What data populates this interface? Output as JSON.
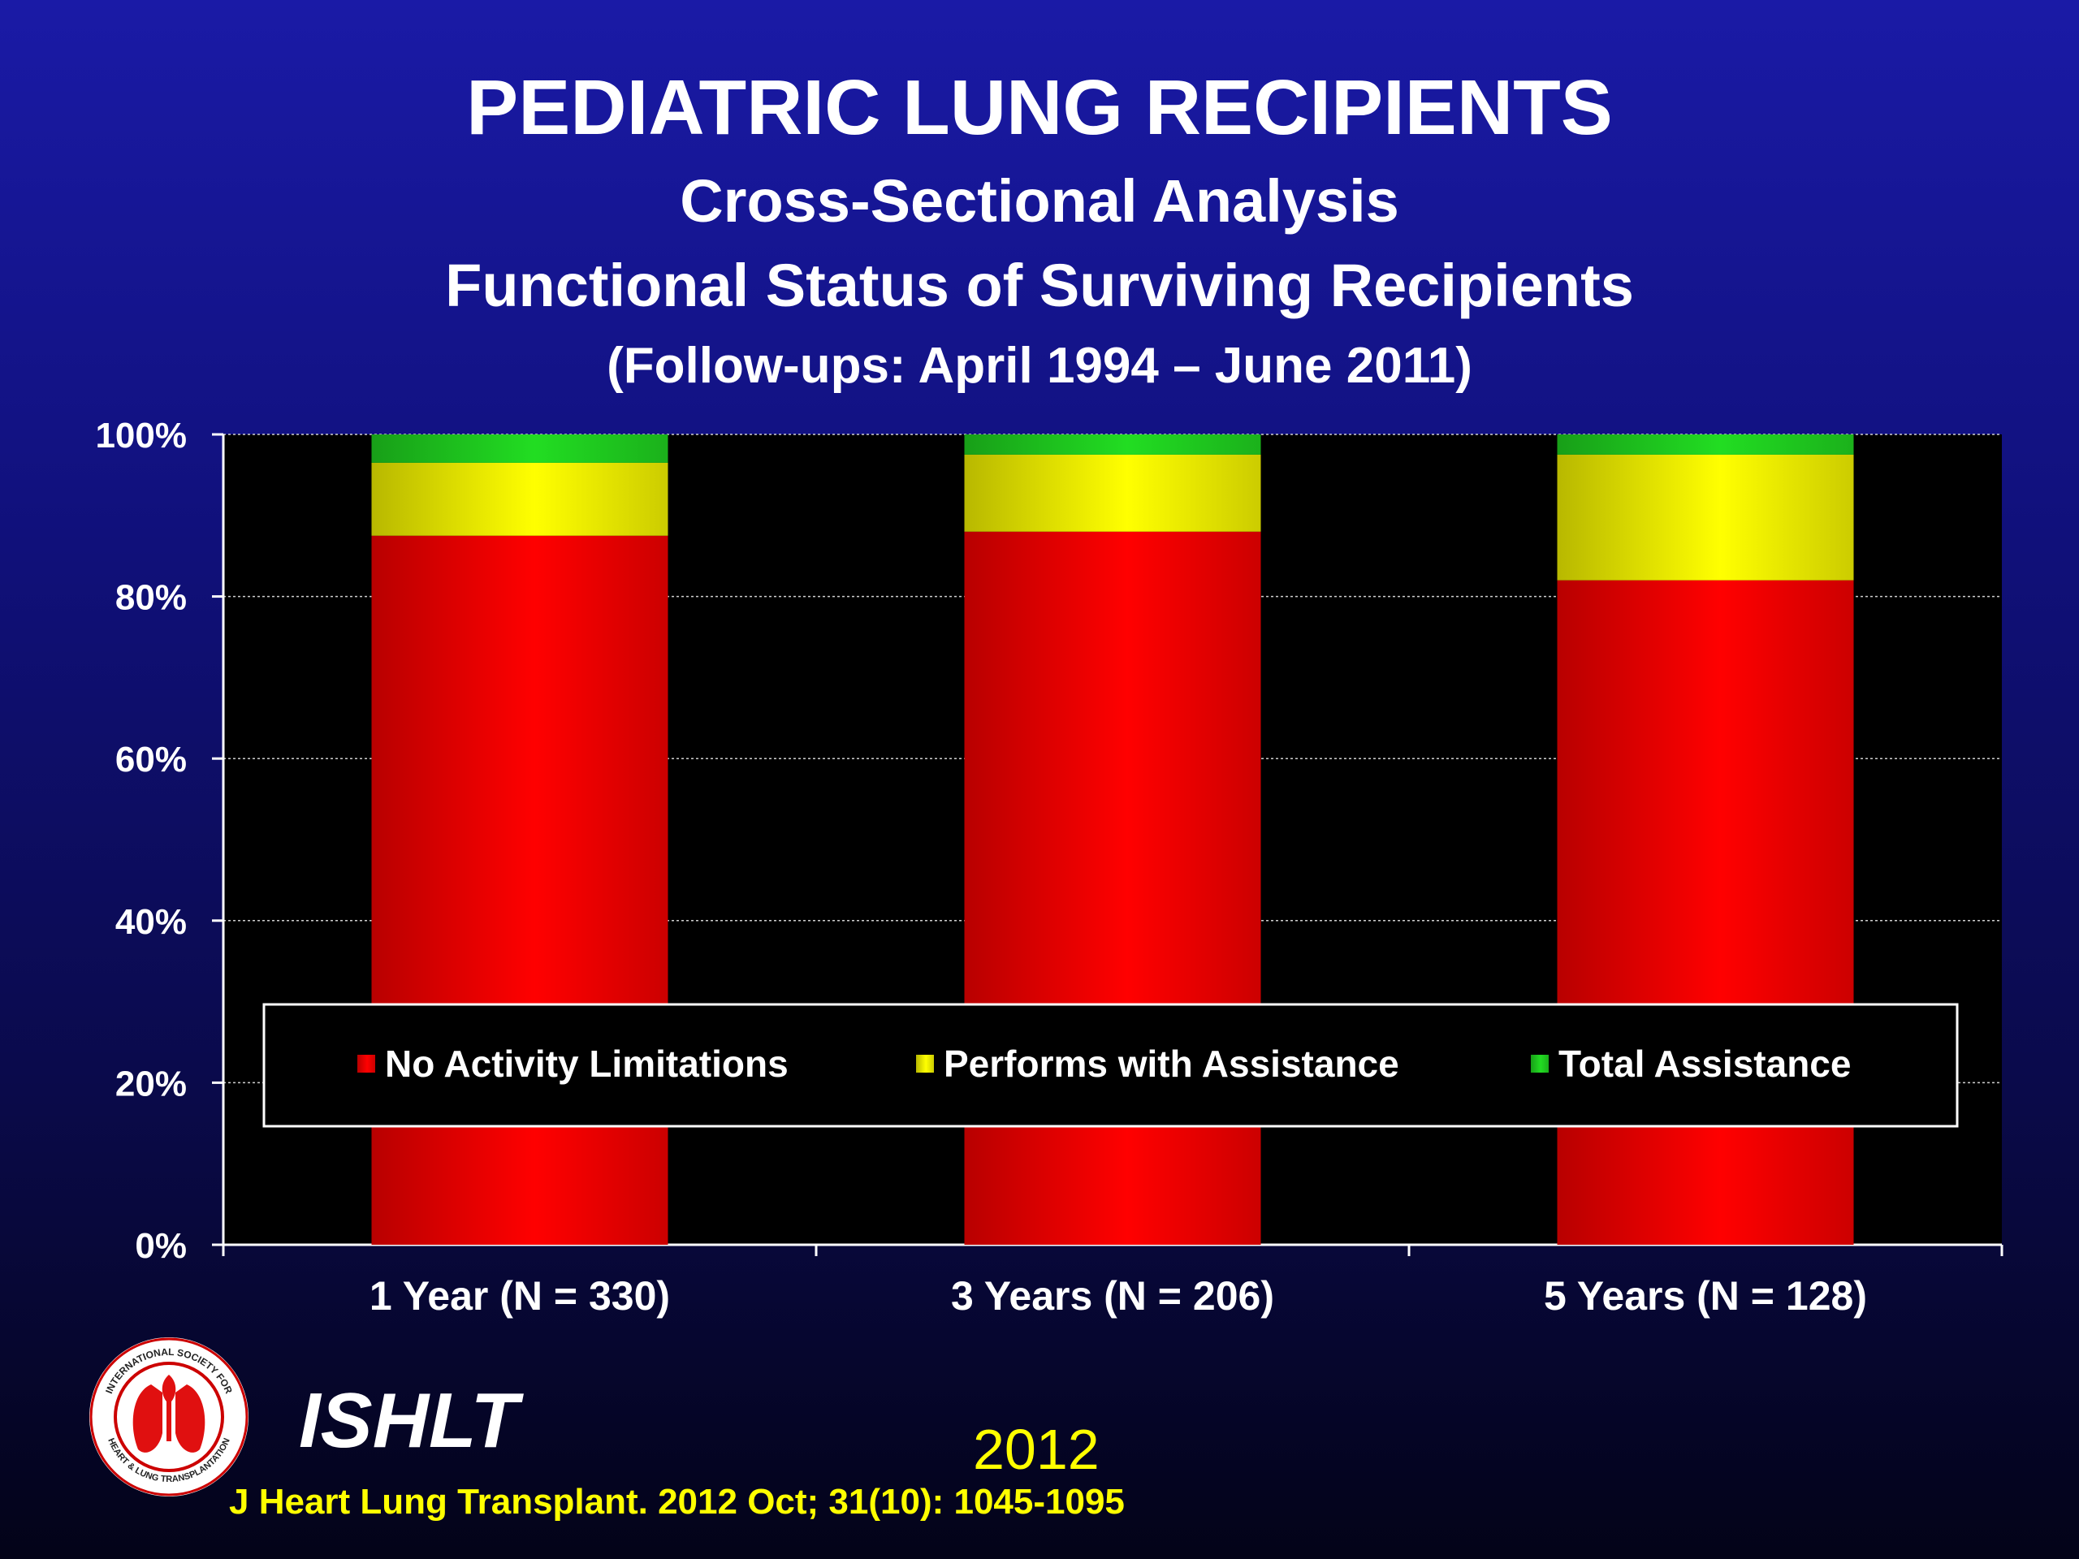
{
  "slide": {
    "title": "PEDIATRIC LUNG RECIPIENTS",
    "subtitle1": "Cross-Sectional Analysis",
    "subtitle2": "Functional Status of Surviving Recipients",
    "subtitle3": "(Follow-ups: April 1994 – June 2011)"
  },
  "footer": {
    "org": "ISHLT",
    "year": "2012",
    "citation": "J Heart Lung Transplant.  2012 Oct; 31(10): 1045-1095",
    "logo_text": "INTERNATIONAL SOCIETY FOR HEART & LUNG TRANSPLANTATION"
  },
  "chart_data": {
    "type": "bar",
    "stacked": true,
    "categories": [
      "1 Year (N = 330)",
      "3 Years (N = 206)",
      "5 Years (N = 128)"
    ],
    "series": [
      {
        "name": "No Activity Limitations",
        "values": [
          87.5,
          88,
          82
        ],
        "color": "#ff0000"
      },
      {
        "name": "Performs with Assistance",
        "values": [
          9,
          9.5,
          15.5
        ],
        "color": "#ffff00"
      },
      {
        "name": "Total Assistance",
        "values": [
          3.5,
          2.5,
          2.5
        ],
        "color": "#22dd22"
      }
    ],
    "yticks": [
      "0%",
      "20%",
      "40%",
      "60%",
      "80%",
      "100%"
    ],
    "ylim": [
      0,
      100
    ],
    "grid": true,
    "legend": "inside-bottom",
    "plot_background": "#000000"
  }
}
